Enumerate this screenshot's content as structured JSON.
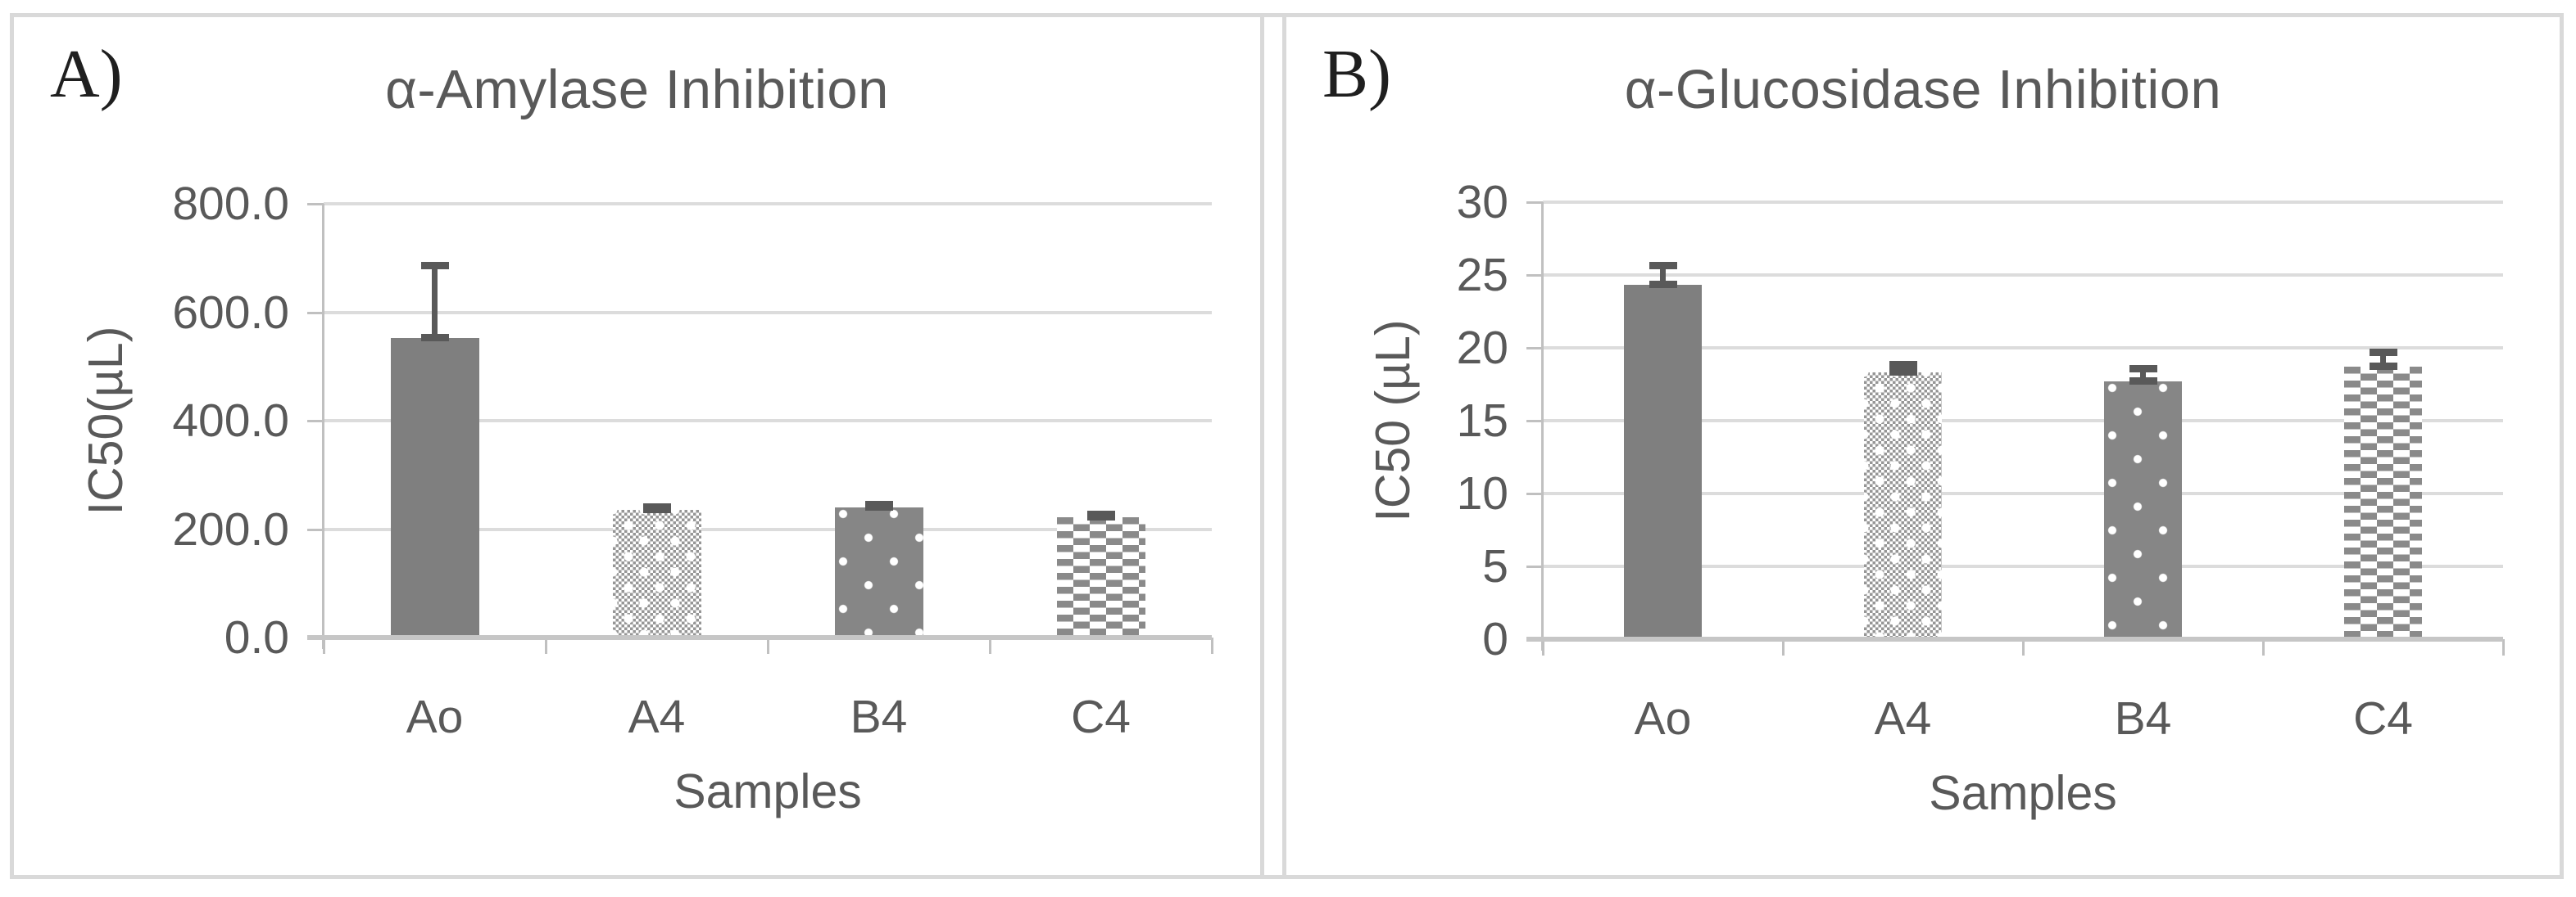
{
  "figure": {
    "panels": [
      {
        "corner_label": "A)"
      },
      {
        "corner_label": "B)"
      }
    ],
    "colors": {
      "bar_solid": "#7f7f7f",
      "error_bar": "#595959",
      "gridline": "#dcdcdc",
      "axis_line": "#c0c0c0",
      "text": "#595959",
      "panel_border": "#d9d9d9"
    }
  },
  "chart_data": [
    {
      "type": "bar",
      "title": "α-Amylase Inhibition",
      "xlabel": "Samples",
      "ylabel": "IC50(µL)",
      "categories": [
        "Ao",
        "A4",
        "B4",
        "C4"
      ],
      "values": [
        553,
        236,
        240,
        222
      ],
      "errors": [
        134,
        5,
        6,
        6
      ],
      "ylim": [
        0,
        800
      ],
      "y_tick_labels": [
        "800.0",
        "600.0",
        "400.0",
        "200.0",
        "0.0"
      ],
      "grid": true,
      "legend": "none",
      "bar_styles": [
        "solid",
        "checker-light",
        "white-dots-on-dark",
        "brick-dashes"
      ]
    },
    {
      "type": "bar",
      "title": "α-Glucosidase Inhibition",
      "xlabel": "Samples",
      "ylabel": "IC50 (µL)",
      "categories": [
        "Ao",
        "A4",
        "B4",
        "C4"
      ],
      "values": [
        24.3,
        18.3,
        17.7,
        18.7
      ],
      "errors": [
        1.4,
        0.6,
        0.9,
        1.0
      ],
      "ylim": [
        0,
        30
      ],
      "y_tick_labels": [
        "30",
        "25",
        "20",
        "15",
        "10",
        "5",
        "0"
      ],
      "grid": true,
      "legend": "none",
      "bar_styles": [
        "solid",
        "checker-light",
        "white-dots-on-dark",
        "brick-dashes"
      ]
    }
  ]
}
